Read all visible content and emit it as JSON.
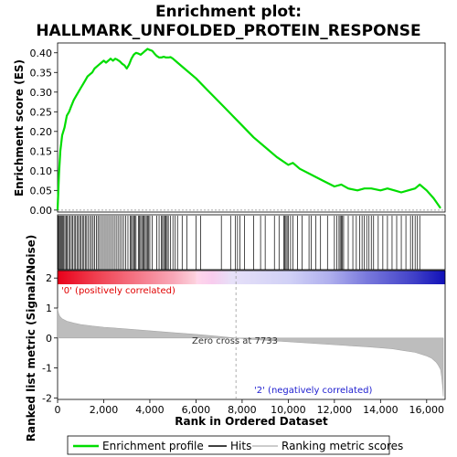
{
  "chart_data": {
    "type": "line",
    "title_line1": "Enrichment plot:",
    "title_line2": "HALLMARK_UNFOLDED_PROTEIN_RESPONSE",
    "xlabel": "Rank in Ordered Dataset",
    "es_ylabel": "Enrichment score (ES)",
    "metric_ylabel": "Ranked list metric (Signal2Noise)",
    "xlim": [
      0,
      16800
    ],
    "x_ticks": [
      0,
      2000,
      4000,
      6000,
      8000,
      10000,
      12000,
      14000,
      16000
    ],
    "x_tick_labels": [
      "0",
      "2,000",
      "4,000",
      "6,000",
      "8,000",
      "10,000",
      "12,000",
      "14,000",
      "16,000"
    ],
    "es_ylim": [
      -0.005,
      0.425
    ],
    "es_ticks": [
      0.0,
      0.05,
      0.1,
      0.15,
      0.2,
      0.25,
      0.3,
      0.35,
      0.4
    ],
    "es_tick_labels": [
      "0.00",
      "0.05",
      "0.10",
      "0.15",
      "0.20",
      "0.25",
      "0.30",
      "0.35",
      "0.40"
    ],
    "metric_ylim": [
      -2.05,
      2.25
    ],
    "metric_ticks": [
      2,
      1,
      0,
      -1,
      -2
    ],
    "metric_tick_labels": [
      "2",
      "1",
      "0",
      "-1",
      "-2"
    ],
    "zero_cross_rank": 7733,
    "zero_cross_label": "Zero cross at 7733",
    "positive_label": "'0' (positively correlated)",
    "negative_label": "'2' (negatively correlated)",
    "series": [
      {
        "name": "Enrichment profile",
        "color": "#00dd00",
        "x": [
          0,
          60,
          120,
          200,
          300,
          400,
          500,
          600,
          700,
          800,
          900,
          1000,
          1100,
          1200,
          1300,
          1400,
          1500,
          1600,
          1700,
          1800,
          1900,
          2000,
          2100,
          2200,
          2300,
          2400,
          2500,
          2600,
          2700,
          2800,
          2900,
          3000,
          3100,
          3200,
          3300,
          3400,
          3500,
          3600,
          3700,
          3800,
          3900,
          4000,
          4100,
          4200,
          4300,
          4400,
          4500,
          4600,
          4700,
          4800,
          4900,
          5000,
          5200,
          5500,
          6000,
          6500,
          7000,
          7500,
          8000,
          8500,
          9000,
          9500,
          10000,
          10200,
          10500,
          11000,
          11500,
          12000,
          12300,
          12600,
          13000,
          13300,
          13600,
          14000,
          14300,
          14600,
          14900,
          15200,
          15500,
          15700,
          16000,
          16300,
          16600
        ],
        "y": [
          0.0,
          0.09,
          0.15,
          0.19,
          0.21,
          0.24,
          0.25,
          0.265,
          0.28,
          0.29,
          0.3,
          0.31,
          0.32,
          0.33,
          0.34,
          0.345,
          0.35,
          0.36,
          0.365,
          0.37,
          0.375,
          0.38,
          0.375,
          0.38,
          0.385,
          0.38,
          0.385,
          0.382,
          0.378,
          0.372,
          0.368,
          0.36,
          0.37,
          0.385,
          0.395,
          0.4,
          0.398,
          0.395,
          0.4,
          0.405,
          0.41,
          0.407,
          0.405,
          0.398,
          0.392,
          0.388,
          0.388,
          0.39,
          0.388,
          0.388,
          0.389,
          0.385,
          0.375,
          0.36,
          0.335,
          0.305,
          0.275,
          0.245,
          0.215,
          0.185,
          0.16,
          0.135,
          0.115,
          0.12,
          0.105,
          0.09,
          0.075,
          0.06,
          0.065,
          0.055,
          0.05,
          0.055,
          0.055,
          0.05,
          0.055,
          0.05,
          0.045,
          0.05,
          0.055,
          0.065,
          0.05,
          0.03,
          0.005
        ]
      }
    ],
    "hit_ranks": [
      30,
      70,
      110,
      150,
      190,
      230,
      270,
      320,
      370,
      420,
      480,
      540,
      600,
      660,
      720,
      780,
      840,
      900,
      960,
      1020,
      1080,
      1140,
      1200,
      1260,
      1330,
      1400,
      1470,
      1540,
      1610,
      1680,
      1750,
      1820,
      1900,
      1980,
      2060,
      2140,
      2220,
      2300,
      2380,
      2460,
      2540,
      2620,
      2700,
      2780,
      2860,
      2950,
      3050,
      3150,
      3200,
      3250,
      3300,
      3350,
      3400,
      3500,
      3550,
      3600,
      3650,
      3700,
      3750,
      3800,
      3850,
      3900,
      3950,
      4000,
      4100,
      4300,
      4400,
      4500,
      4550,
      4600,
      4650,
      4700,
      4750,
      4800,
      4900,
      5000,
      5100,
      5200,
      5400,
      5600,
      6000,
      6200,
      7100,
      7500,
      7700,
      7800,
      7900,
      8100,
      8500,
      8800,
      9000,
      9400,
      9600,
      9800,
      9850,
      9900,
      9950,
      10000,
      10100,
      10200,
      10400,
      10600,
      10900,
      11000,
      11200,
      11400,
      11700,
      12000,
      12100,
      12200,
      12250,
      12300,
      12350,
      12400,
      12600,
      12800,
      12950,
      13100,
      13200,
      13300,
      13400,
      13500,
      13600,
      13700,
      13900,
      14100,
      14300,
      14500,
      14700,
      14900,
      15100,
      15300,
      15400,
      15500,
      15600,
      15700
    ],
    "metric_curve": {
      "x": [
        0,
        20,
        50,
        100,
        200,
        400,
        700,
        1000,
        1500,
        2000,
        3000,
        4000,
        5000,
        6000,
        7000,
        7733,
        8500,
        9500,
        10500,
        11500,
        12500,
        13500,
        14500,
        15000,
        15500,
        15800,
        16000,
        16200,
        16400,
        16500,
        16600,
        16650,
        16700,
        16720
      ],
      "y": [
        1.0,
        0.9,
        0.8,
        0.72,
        0.64,
        0.56,
        0.5,
        0.45,
        0.4,
        0.36,
        0.3,
        0.24,
        0.18,
        0.12,
        0.05,
        0.0,
        -0.05,
        -0.1,
        -0.15,
        -0.2,
        -0.25,
        -0.3,
        -0.36,
        -0.42,
        -0.48,
        -0.55,
        -0.6,
        -0.67,
        -0.8,
        -0.9,
        -1.05,
        -1.3,
        -1.7,
        -1.95
      ]
    }
  },
  "legend": {
    "items": [
      {
        "label": "Enrichment profile",
        "color": "#00dd00"
      },
      {
        "label": "Hits",
        "color": "#000000"
      },
      {
        "label": "Ranking metric scores",
        "color": "#bbbbbb"
      }
    ]
  }
}
